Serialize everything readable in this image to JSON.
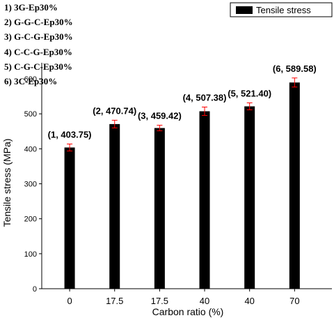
{
  "chart_data": {
    "type": "bar",
    "categories": [
      "0",
      "17.5",
      "17.5",
      "40",
      "40",
      "70"
    ],
    "series": [
      {
        "name": "Tensile stress",
        "values": [
          403.75,
          470.74,
          459.42,
          507.38,
          521.4,
          589.58
        ],
        "errors": [
          10,
          11,
          8,
          12,
          10,
          13
        ]
      }
    ],
    "data_labels": [
      "(1, 403.75)",
      "(2, 470.74)",
      "(3, 459.42)",
      "(4, 507.38)",
      "(5, 521.40)",
      "(6, 589.58)"
    ],
    "xlabel": "Carbon ratio (%)",
    "ylabel": "Tensile stress (MPa)",
    "ylim": [
      0,
      650
    ],
    "yticks": [
      0,
      100,
      200,
      300,
      400,
      500,
      600
    ],
    "grid": false,
    "legend_position": "top-right",
    "annotations": [
      "1) 3G-Ep30%",
      "2) G-G-C-Ep30%",
      "3) G-C-G-Ep30%",
      "4) C-C-G-Ep30%",
      "5) C-G-C-Ep30%",
      "6) 3C-Ep30%"
    ],
    "colors": {
      "bar": "#000000",
      "error_bar": "#ff0000",
      "axis": "#000000"
    }
  }
}
